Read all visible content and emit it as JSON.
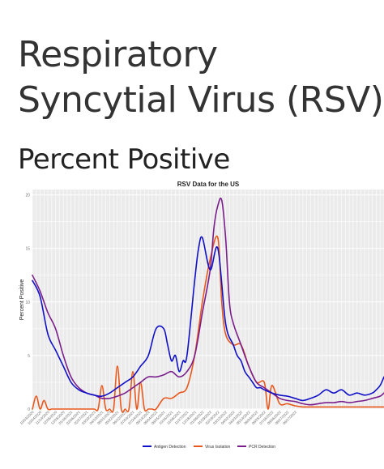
{
  "page": {
    "title_line1": "Respiratory",
    "title_line2": "Syncytial Virus (RSV)",
    "subtitle": "Percent Positive"
  },
  "chart_data": {
    "type": "line",
    "title": "RSV Data for the US",
    "xlabel": "",
    "ylabel": "Percent Positive",
    "ylim": [
      0,
      20.5
    ],
    "yticks": [
      0,
      5,
      10,
      15,
      20
    ],
    "ytick_labels": [
      "0",
      "5",
      "10",
      "15",
      "20"
    ],
    "grid": true,
    "legend_position": "bottom",
    "x_count": 92,
    "x_labels": [
      "10/03/2020",
      "10/24/2020",
      "11/14/2020",
      "12/05/2020",
      "12/26/2020",
      "01/16/2021",
      "02/06/2021",
      "02/27/2021",
      "03/20/2021",
      "04/10/2021",
      "05/01/2021",
      "05/22/2021",
      "06/12/2021",
      "07/03/2021",
      "07/24/2021",
      "08/14/2021",
      "09/04/2021",
      "09/25/2021",
      "10/16/2021",
      "11/06/2021",
      "11/27/2021",
      "12/18/2021",
      "01/08/2022",
      "01/29/2022",
      "02/19/2022",
      "03/12/2022",
      "04/02/2022",
      "04/23/2022",
      "05/14/2022",
      "06/04/2022",
      "06/25/2022",
      "07/16/2022",
      "08/06/2022",
      "08/27/2022",
      "09/17/2022"
    ],
    "colors": {
      "antigen": "#1010c8",
      "isolation": "#e8581c",
      "pcr": "#7a1e8c"
    },
    "series": [
      {
        "name": "Antigen Detection",
        "color": "#1010c8",
        "x": [
          0,
          2,
          4,
          6,
          8,
          10,
          12,
          14,
          16,
          18,
          20,
          22,
          24,
          26,
          28,
          30,
          32,
          34,
          35,
          36,
          37,
          38,
          39,
          40,
          42,
          43,
          44,
          46,
          48,
          50,
          52,
          53,
          54,
          55,
          56,
          57,
          58,
          59,
          60,
          62,
          64,
          66,
          68,
          70,
          72,
          74,
          76,
          78,
          80,
          82,
          84,
          86,
          88,
          89,
          90,
          91
        ],
        "y": [
          12,
          10.5,
          7,
          5.5,
          4,
          2.5,
          1.8,
          1.5,
          1.3,
          1.2,
          1.5,
          2,
          2.5,
          3,
          4,
          5,
          7.5,
          7.5,
          6,
          4.5,
          5,
          3.5,
          4.5,
          5,
          12,
          15,
          16,
          13,
          15,
          8,
          6,
          5,
          4.5,
          3.5,
          3,
          2.5,
          2,
          2,
          1.8,
          1.5,
          1.3,
          1.2,
          1,
          0.8,
          1,
          1.3,
          1.8,
          1.5,
          1.8,
          1.3,
          1.5,
          1.3,
          1.5,
          1.8,
          2.2,
          3
        ]
      },
      {
        "name": "Virus Isolation",
        "color": "#e8581c",
        "x": [
          0,
          1,
          2,
          3,
          4,
          5,
          6,
          8,
          10,
          12,
          14,
          16,
          17,
          18,
          19,
          20,
          21,
          22,
          23,
          24,
          25,
          26,
          27,
          28,
          29,
          30,
          31,
          32,
          34,
          36,
          38,
          40,
          42,
          44,
          46,
          48,
          49,
          50,
          52,
          54,
          56,
          58,
          60,
          61,
          62,
          64,
          66,
          68,
          70,
          72,
          74,
          76,
          78,
          80,
          82,
          84,
          86,
          88,
          90,
          91
        ],
        "y": [
          0,
          1.2,
          0,
          0.8,
          0,
          0,
          0,
          0,
          0,
          0,
          0,
          0,
          0,
          2.2,
          0,
          0,
          0,
          4,
          0,
          0,
          0,
          3.5,
          0,
          2.5,
          0,
          0,
          0,
          0,
          1,
          1,
          1.5,
          2,
          5,
          10,
          14,
          16,
          10,
          7,
          6,
          6,
          4,
          2.5,
          2.5,
          0,
          2.2,
          0.5,
          0.5,
          0.3,
          0.2,
          0.2,
          0.2,
          0.2,
          0.2,
          0.2,
          0.2,
          0.2,
          0.2,
          0.2,
          0.2,
          0.2
        ]
      },
      {
        "name": "PCR Detection",
        "color": "#7a1e8c",
        "x": [
          0,
          2,
          4,
          6,
          8,
          10,
          12,
          14,
          16,
          18,
          20,
          22,
          24,
          26,
          28,
          30,
          32,
          34,
          36,
          38,
          40,
          42,
          44,
          46,
          47,
          48,
          49,
          50,
          51,
          52,
          54,
          56,
          58,
          60,
          62,
          64,
          66,
          68,
          70,
          72,
          74,
          76,
          78,
          80,
          82,
          84,
          86,
          88,
          90,
          91
        ],
        "y": [
          12.5,
          11,
          9,
          7.5,
          5,
          3,
          2,
          1.5,
          1.3,
          1,
          1,
          1.2,
          1.5,
          2,
          2.5,
          3,
          3,
          3.2,
          3.5,
          3,
          3.5,
          5,
          9,
          13,
          17,
          19,
          19.5,
          16,
          10,
          8,
          6,
          4,
          2.5,
          2,
          1.5,
          1,
          0.8,
          0.7,
          0.5,
          0.4,
          0.5,
          0.6,
          0.6,
          0.7,
          0.6,
          0.7,
          0.8,
          1,
          1.2,
          1.5
        ]
      }
    ]
  }
}
